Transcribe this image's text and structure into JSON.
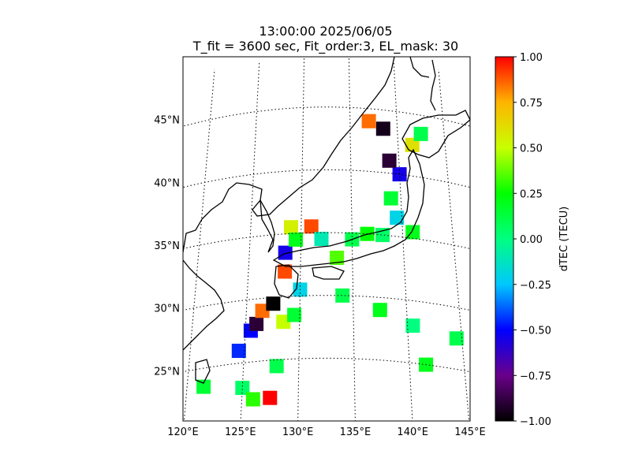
{
  "chart_data": {
    "type": "heatmap",
    "title_line1": "13:00:00 2025/06/05",
    "title_line2": "T_fit = 3600 sec, Fit_order:3, EL_mask: 30",
    "map": {
      "lon_range": [
        120,
        145
      ],
      "lat_range": [
        20,
        49
      ],
      "projection": "polar-stereographic",
      "lon_ticks": [
        "120°E",
        "125°E",
        "130°E",
        "135°E",
        "140°E",
        "145°E"
      ],
      "lat_ticks": [
        "25°N",
        "30°N",
        "35°N",
        "40°N",
        "45°N"
      ],
      "grid": true,
      "coastlines": true
    },
    "colorbar": {
      "label": "dTEC (TECU)",
      "range": [
        -1.0,
        1.0
      ],
      "ticks": [
        "−1.00",
        "−0.75",
        "−0.50",
        "−0.25",
        "0.00",
        "0.25",
        "0.50",
        "0.75",
        "1.00"
      ],
      "colormap": "nipy_spectral-like",
      "stops": [
        "#000000",
        "#6a008a",
        "#0000ff",
        "#00c8ff",
        "#00ff80",
        "#00ff00",
        "#c8ff00",
        "#ffb400",
        "#ff0000"
      ]
    },
    "regions": [
      {
        "lon": 121.5,
        "lat": 23.5,
        "dtec": 0.15
      },
      {
        "lon": 125.0,
        "lat": 23.0,
        "dtec": 0.05
      },
      {
        "lon": 126.0,
        "lat": 22.0,
        "dtec": 0.3
      },
      {
        "lon": 127.5,
        "lat": 22.0,
        "dtec": 1.0
      },
      {
        "lon": 128.0,
        "lat": 24.5,
        "dtec": 0.1
      },
      {
        "lon": 124.5,
        "lat": 26.0,
        "dtec": -0.45
      },
      {
        "lon": 125.5,
        "lat": 27.5,
        "dtec": -0.5
      },
      {
        "lon": 126.0,
        "lat": 28.0,
        "dtec": -0.9
      },
      {
        "lon": 126.5,
        "lat": 29.0,
        "dtec": 0.85
      },
      {
        "lon": 127.5,
        "lat": 29.5,
        "dtec": -1.0
      },
      {
        "lon": 128.5,
        "lat": 28.0,
        "dtec": 0.5
      },
      {
        "lon": 129.5,
        "lat": 28.5,
        "dtec": 0.15
      },
      {
        "lon": 130.0,
        "lat": 30.5,
        "dtec": -0.2
      },
      {
        "lon": 128.5,
        "lat": 32.0,
        "dtec": 0.9
      },
      {
        "lon": 128.5,
        "lat": 33.5,
        "dtec": -0.55
      },
      {
        "lon": 129.0,
        "lat": 35.5,
        "dtec": 0.55
      },
      {
        "lon": 129.5,
        "lat": 34.5,
        "dtec": 0.2
      },
      {
        "lon": 131.0,
        "lat": 35.5,
        "dtec": 0.9
      },
      {
        "lon": 132.0,
        "lat": 34.5,
        "dtec": -0.1
      },
      {
        "lon": 133.5,
        "lat": 33.0,
        "dtec": 0.35
      },
      {
        "lon": 135.0,
        "lat": 34.5,
        "dtec": 0.1
      },
      {
        "lon": 136.5,
        "lat": 35.0,
        "dtec": 0.25
      },
      {
        "lon": 138.0,
        "lat": 35.0,
        "dtec": 0.05
      },
      {
        "lon": 139.5,
        "lat": 36.5,
        "dtec": -0.2
      },
      {
        "lon": 141.0,
        "lat": 35.5,
        "dtec": 0.2
      },
      {
        "lon": 139.0,
        "lat": 38.0,
        "dtec": 0.15
      },
      {
        "lon": 140.0,
        "lat": 40.0,
        "dtec": -0.55
      },
      {
        "lon": 139.0,
        "lat": 41.0,
        "dtec": -0.9
      },
      {
        "lon": 141.5,
        "lat": 42.5,
        "dtec": 0.6
      },
      {
        "lon": 142.5,
        "lat": 43.5,
        "dtec": 0.1
      },
      {
        "lon": 138.5,
        "lat": 43.5,
        "dtec": -0.95
      },
      {
        "lon": 137.0,
        "lat": 44.0,
        "dtec": 0.85
      },
      {
        "lon": 134.0,
        "lat": 30.0,
        "dtec": 0.1
      },
      {
        "lon": 137.5,
        "lat": 29.0,
        "dtec": 0.2
      },
      {
        "lon": 140.5,
        "lat": 28.0,
        "dtec": 0.0
      },
      {
        "lon": 141.5,
        "lat": 25.0,
        "dtec": 0.2
      },
      {
        "lon": 144.5,
        "lat": 27.5,
        "dtec": 0.1
      }
    ]
  }
}
